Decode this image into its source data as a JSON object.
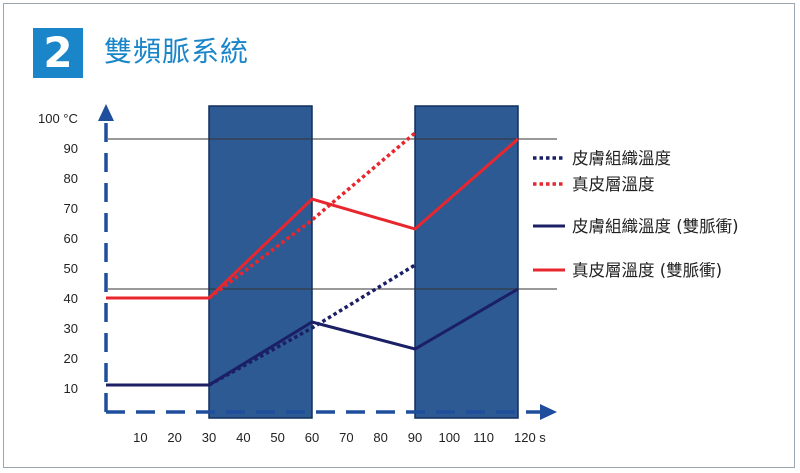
{
  "header": {
    "badge_number": "2",
    "title": "雙頻脈系統"
  },
  "chart_data": {
    "type": "line",
    "title": "雙頻脈系統",
    "xlabel": "",
    "ylabel": "",
    "xlim": [
      0,
      120
    ],
    "ylim": [
      0,
      100
    ],
    "x_tick_values": [
      10,
      20,
      30,
      40,
      50,
      60,
      70,
      80,
      90,
      100,
      110,
      120
    ],
    "x_tick_labels": [
      "10",
      "20",
      "30",
      "40",
      "50",
      "60",
      "70",
      "80",
      "90",
      "100",
      "110",
      "120 s"
    ],
    "y_tick_values": [
      10,
      20,
      30,
      40,
      50,
      60,
      70,
      80,
      90,
      100
    ],
    "y_tick_labels": [
      "10",
      "20",
      "30",
      "40",
      "50",
      "60",
      "70",
      "80",
      "90",
      "100 °C"
    ],
    "shaded_intervals": [
      [
        30,
        60
      ],
      [
        90,
        120
      ]
    ],
    "reference_lines": [
      43,
      93
    ],
    "grid": false,
    "legend_position": "right",
    "series": [
      {
        "name": "皮膚組織溫度",
        "color": "#1a1f66",
        "dashed": true,
        "points": [
          [
            30,
            11
          ],
          [
            60,
            30
          ],
          [
            90,
            51
          ]
        ]
      },
      {
        "name": "真皮層溫度",
        "color": "#e8262d",
        "dashed": true,
        "points": [
          [
            30,
            40
          ],
          [
            60,
            66
          ],
          [
            90,
            95
          ]
        ]
      },
      {
        "name": "皮膚組織溫度 (雙脈衝)",
        "color": "#1a1f66",
        "dashed": false,
        "points": [
          [
            0,
            11
          ],
          [
            30,
            11
          ],
          [
            60,
            32
          ],
          [
            90,
            23
          ],
          [
            120,
            43
          ]
        ]
      },
      {
        "name": "真皮層溫度 (雙脈衝)",
        "color": "#e8262d",
        "dashed": false,
        "points": [
          [
            0,
            40
          ],
          [
            30,
            40
          ],
          [
            60,
            73
          ],
          [
            90,
            63
          ],
          [
            120,
            93
          ]
        ]
      }
    ]
  },
  "colors": {
    "accent": "#1a86c9",
    "axis": "#1f4e9c",
    "pulse_fill": "#2e5a93",
    "pulse_edge": "#102f5c"
  }
}
